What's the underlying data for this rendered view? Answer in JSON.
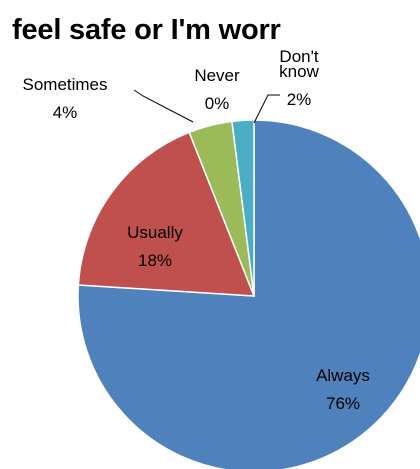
{
  "chart_data": {
    "type": "pie",
    "title": "feel safe or I'm worr",
    "slices": [
      {
        "label": "Always",
        "value": 76,
        "display": "76%",
        "color": "#4F81BD"
      },
      {
        "label": "Usually",
        "value": 18,
        "display": "18%",
        "color": "#C0504D"
      },
      {
        "label": "Sometimes",
        "value": 4,
        "display": "4%",
        "color": "#9BBB59"
      },
      {
        "label": "Never",
        "value": 0,
        "display": "0%",
        "color": "#8064A2"
      },
      {
        "label": "Don't know",
        "label_lines": [
          "Don't",
          "know"
        ],
        "value": 2,
        "display": "2%",
        "color": "#4BACC6"
      }
    ]
  }
}
